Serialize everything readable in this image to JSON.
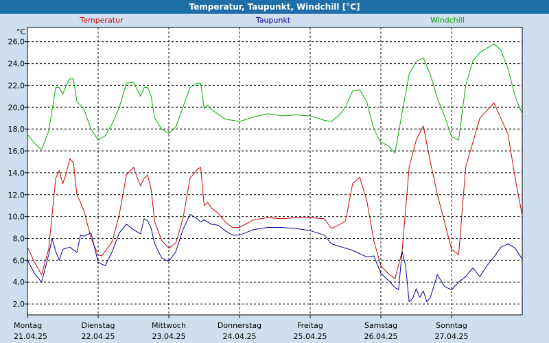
{
  "chart_data": {
    "type": "line",
    "title": "Temperatur, Taupunkt, Windchill [°C]",
    "ylabel": "°C",
    "xlabel": "",
    "ylim": [
      1.0,
      27.3
    ],
    "xlim": [
      0,
      7.0
    ],
    "grid": true,
    "yticks": [
      2.0,
      4.0,
      6.0,
      8.0,
      10.0,
      12.0,
      14.0,
      16.0,
      18.0,
      20.0,
      22.0,
      24.0,
      26.0
    ],
    "ytick_labels": [
      "2,0",
      "4,0",
      "6,0",
      "8,0",
      "10,0",
      "12,0",
      "14,0",
      "16,0",
      "18,0",
      "20,0",
      "22,0",
      "24,0",
      "26,0"
    ],
    "xticks": [
      {
        "x": 0,
        "day": "Montag",
        "date": "21.04.25"
      },
      {
        "x": 1,
        "day": "Dienstag",
        "date": "22.04.25"
      },
      {
        "x": 2,
        "day": "Mittwoch",
        "date": "23.04.25"
      },
      {
        "x": 3,
        "day": "Donnerstag",
        "date": "24.04.25"
      },
      {
        "x": 4,
        "day": "Freitag",
        "date": "25.04.25"
      },
      {
        "x": 5,
        "day": "Samstag",
        "date": "26.04.25"
      },
      {
        "x": 6,
        "day": "Sonntag",
        "date": "27.04.25"
      }
    ],
    "series": [
      {
        "name": "Temperatur",
        "color": "#cc0000",
        "x": [
          0.0,
          0.1,
          0.2,
          0.3,
          0.4,
          0.45,
          0.5,
          0.55,
          0.6,
          0.65,
          0.7,
          0.75,
          0.8,
          0.9,
          1.0,
          1.05,
          1.2,
          1.3,
          1.4,
          1.5,
          1.6,
          1.65,
          1.7,
          1.75,
          1.8,
          1.9,
          2.0,
          2.1,
          2.2,
          2.3,
          2.4,
          2.45,
          2.5,
          2.55,
          2.6,
          2.7,
          2.8,
          2.9,
          3.0,
          3.2,
          3.4,
          3.6,
          3.8,
          4.0,
          4.2,
          4.3,
          4.4,
          4.5,
          4.6,
          4.7,
          4.8,
          4.9,
          5.0,
          5.1,
          5.2,
          5.3,
          5.4,
          5.5,
          5.6,
          5.7,
          5.8,
          5.9,
          6.0,
          6.1,
          6.2,
          6.4,
          6.6,
          6.8,
          6.9,
          7.0
        ],
        "y": [
          7.2,
          5.8,
          4.7,
          7.0,
          13.5,
          14.2,
          13.0,
          14.0,
          15.3,
          14.9,
          12.0,
          11.3,
          10.5,
          8.0,
          6.5,
          6.4,
          7.7,
          10.2,
          13.8,
          14.5,
          12.8,
          13.5,
          13.8,
          12.5,
          9.5,
          7.8,
          7.1,
          7.6,
          9.8,
          13.5,
          14.3,
          14.5,
          11.0,
          11.3,
          10.8,
          10.3,
          9.5,
          9.0,
          9.0,
          9.7,
          9.9,
          9.8,
          9.9,
          9.9,
          9.8,
          8.9,
          9.2,
          9.6,
          13.0,
          13.6,
          11.5,
          7.8,
          5.5,
          4.8,
          4.3,
          6.8,
          14.5,
          17.0,
          18.3,
          15.0,
          12.0,
          9.5,
          7.0,
          6.5,
          14.5,
          19.0,
          20.4,
          17.5,
          13.5,
          10.1
        ]
      },
      {
        "name": "Taupunkt",
        "color": "#000099",
        "x": [
          0.0,
          0.1,
          0.2,
          0.3,
          0.35,
          0.4,
          0.45,
          0.5,
          0.6,
          0.7,
          0.75,
          0.8,
          0.9,
          1.0,
          1.1,
          1.2,
          1.3,
          1.4,
          1.5,
          1.6,
          1.65,
          1.7,
          1.75,
          1.8,
          1.9,
          2.0,
          2.1,
          2.2,
          2.3,
          2.4,
          2.45,
          2.5,
          2.6,
          2.7,
          2.8,
          2.9,
          3.0,
          3.2,
          3.4,
          3.6,
          3.8,
          4.0,
          4.2,
          4.3,
          4.4,
          4.6,
          4.8,
          4.9,
          5.0,
          5.1,
          5.2,
          5.25,
          5.3,
          5.35,
          5.4,
          5.45,
          5.5,
          5.55,
          5.6,
          5.65,
          5.7,
          5.8,
          5.9,
          6.0,
          6.1,
          6.2,
          6.3,
          6.4,
          6.5,
          6.6,
          6.7,
          6.8,
          6.9,
          7.0
        ],
        "y": [
          6.0,
          4.8,
          4.0,
          6.5,
          8.0,
          6.8,
          6.0,
          7.0,
          7.2,
          6.7,
          8.3,
          8.2,
          8.5,
          5.8,
          5.5,
          6.8,
          8.5,
          9.3,
          8.8,
          8.4,
          9.8,
          9.6,
          8.9,
          7.5,
          6.2,
          5.9,
          6.8,
          8.8,
          10.2,
          9.8,
          9.5,
          9.7,
          9.3,
          9.2,
          8.7,
          8.3,
          8.3,
          8.8,
          9.0,
          9.0,
          8.9,
          8.7,
          8.3,
          7.5,
          7.3,
          6.9,
          6.3,
          6.4,
          4.8,
          4.2,
          3.5,
          3.3,
          6.8,
          5.5,
          2.2,
          2.5,
          3.4,
          2.6,
          3.2,
          2.2,
          2.6,
          4.7,
          3.6,
          3.3,
          4.0,
          4.5,
          5.3,
          4.5,
          5.5,
          6.3,
          7.2,
          7.5,
          7.1,
          6.1
        ]
      },
      {
        "name": "Windchill",
        "color": "#00aa00",
        "x": [
          0.0,
          0.1,
          0.2,
          0.3,
          0.4,
          0.45,
          0.5,
          0.55,
          0.6,
          0.65,
          0.7,
          0.75,
          0.8,
          0.9,
          1.0,
          1.1,
          1.2,
          1.3,
          1.4,
          1.5,
          1.6,
          1.65,
          1.7,
          1.75,
          1.8,
          1.9,
          2.0,
          2.1,
          2.2,
          2.3,
          2.4,
          2.45,
          2.5,
          2.55,
          2.6,
          2.8,
          3.0,
          3.2,
          3.4,
          3.6,
          3.8,
          4.0,
          4.2,
          4.3,
          4.4,
          4.5,
          4.6,
          4.7,
          4.8,
          4.9,
          5.0,
          5.1,
          5.2,
          5.3,
          5.4,
          5.5,
          5.6,
          5.7,
          5.8,
          5.9,
          6.0,
          6.1,
          6.2,
          6.3,
          6.4,
          6.6,
          6.7,
          6.8,
          6.9,
          7.0
        ],
        "y": [
          17.5,
          16.7,
          16.1,
          17.8,
          21.8,
          21.8,
          21.2,
          22.0,
          22.6,
          22.6,
          20.5,
          20.2,
          19.8,
          18.0,
          17.0,
          17.4,
          18.5,
          20.0,
          22.2,
          22.3,
          21.0,
          21.8,
          21.8,
          21.0,
          19.0,
          18.0,
          17.6,
          18.2,
          20.0,
          21.8,
          22.2,
          22.2,
          19.9,
          20.2,
          19.8,
          18.9,
          18.7,
          19.1,
          19.4,
          19.2,
          19.3,
          19.2,
          18.8,
          18.7,
          19.2,
          20.0,
          21.5,
          21.6,
          20.5,
          18.0,
          16.8,
          16.5,
          15.8,
          19.5,
          23.0,
          24.2,
          24.5,
          23.0,
          20.8,
          19.2,
          17.3,
          17.0,
          22.0,
          24.2,
          25.0,
          25.8,
          25.2,
          23.5,
          21.0,
          19.4
        ]
      }
    ]
  }
}
